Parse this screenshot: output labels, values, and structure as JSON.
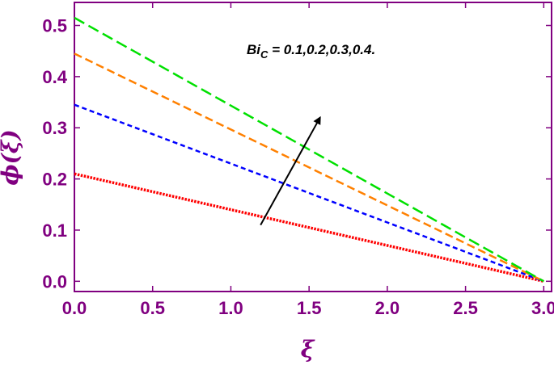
{
  "chart_data": {
    "type": "line",
    "xlabel": "ξ",
    "ylabel": "ϕ(ξ)",
    "xlim": [
      0,
      3.05
    ],
    "ylim": [
      -0.02,
      0.545
    ],
    "xticks": [
      "0.0",
      "0.5",
      "1.0",
      "1.5",
      "2.0",
      "2.5",
      "3.0"
    ],
    "xtick_values": [
      0,
      0.5,
      1.0,
      1.5,
      2.0,
      2.5,
      3.0
    ],
    "yticks": [
      "0.0",
      "0.1",
      "0.2",
      "0.3",
      "0.4",
      "0.5"
    ],
    "ytick_values": [
      0,
      0.1,
      0.2,
      0.3,
      0.4,
      0.5
    ],
    "grid": false,
    "annotation": {
      "text_main": "Bi",
      "text_sub": "C",
      "text_rest": " = 0.1,0.2,0.3,0.4.",
      "arrow_from": [
        1.19,
        0.11
      ],
      "arrow_to": [
        1.57,
        0.32
      ]
    },
    "series": [
      {
        "color": "#ff0000",
        "style": "dotted",
        "x": [
          0,
          3.0
        ],
        "y": [
          0.21,
          0.0
        ]
      },
      {
        "color": "#0000ff",
        "style": "short-dash",
        "x": [
          0,
          3.0
        ],
        "y": [
          0.345,
          0.0
        ]
      },
      {
        "color": "#ff8000",
        "style": "dashed",
        "x": [
          0,
          3.0
        ],
        "y": [
          0.445,
          0.0
        ]
      },
      {
        "color": "#00e000",
        "style": "long-dash",
        "x": [
          0,
          3.0
        ],
        "y": [
          0.515,
          0.0
        ]
      }
    ]
  }
}
